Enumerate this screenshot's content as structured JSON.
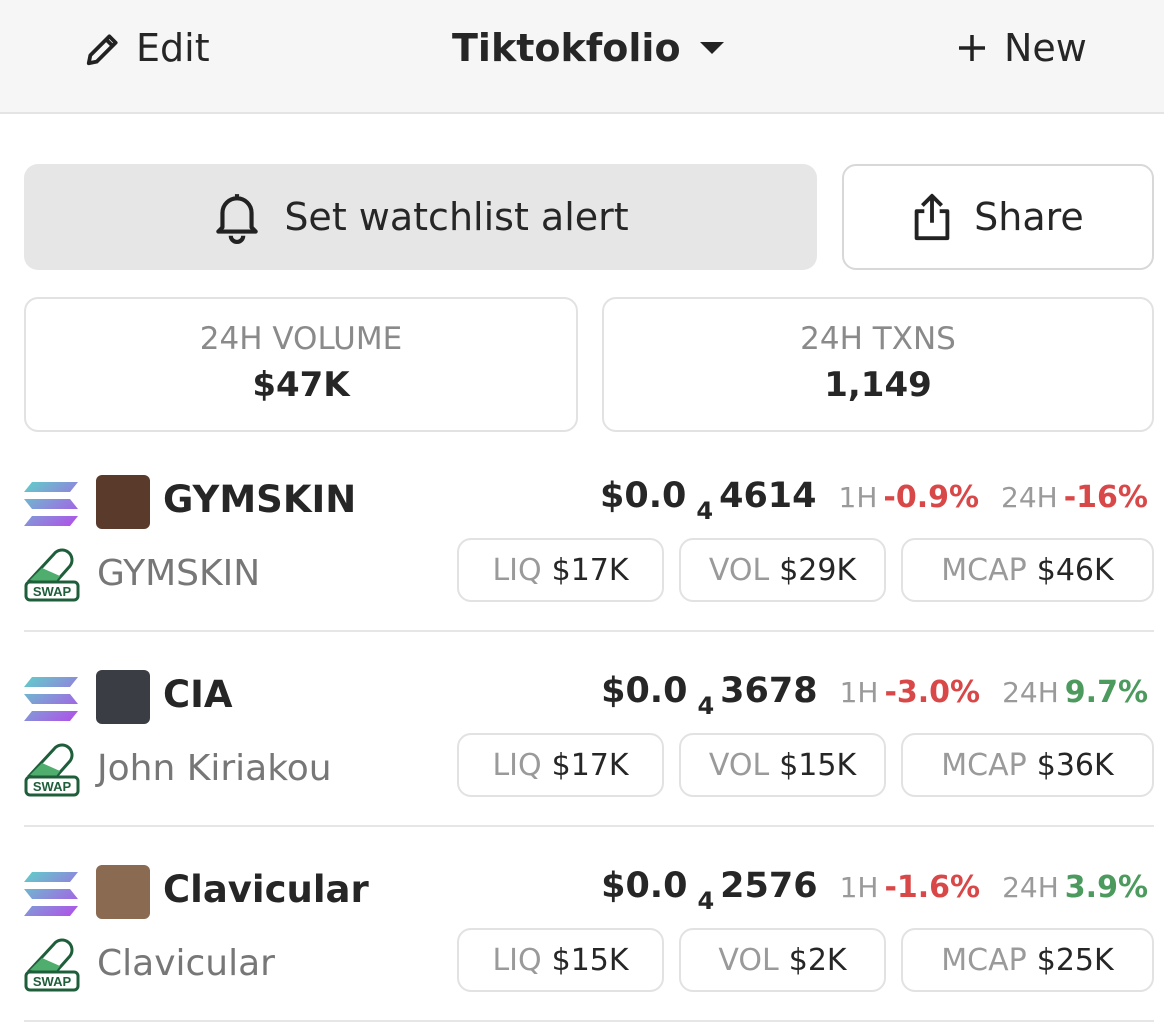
{
  "header": {
    "edit": "Edit",
    "title": "Tiktokfolio",
    "new": "New"
  },
  "actions": {
    "alert": "Set watchlist alert",
    "share": "Share"
  },
  "stats": [
    {
      "label": "24H VOLUME",
      "value": "$47K"
    },
    {
      "label": "24H TXNS",
      "value": "1,149"
    }
  ],
  "tokens": [
    {
      "symbol": "GYMSKIN",
      "name": "GYMSKIN",
      "badge": "SWAP",
      "price_prefix": "$0.0",
      "price_zeros": "4",
      "price_digits": "4614",
      "change_1h_label": "1H",
      "change_1h": "-0.9%",
      "change_24h_label": "24H",
      "change_24h": "-16%",
      "liq_label": "LIQ",
      "liq": "$17K",
      "vol_label": "VOL",
      "vol": "$29K",
      "mcap_label": "MCAP",
      "mcap": "$46K"
    },
    {
      "symbol": "CIA",
      "name": "John Kiriakou",
      "badge": "SWAP",
      "price_prefix": "$0.0",
      "price_zeros": "4",
      "price_digits": "3678",
      "change_1h_label": "1H",
      "change_1h": "-3.0%",
      "change_24h_label": "24H",
      "change_24h": "9.7%",
      "liq_label": "LIQ",
      "liq": "$17K",
      "vol_label": "VOL",
      "vol": "$15K",
      "mcap_label": "MCAP",
      "mcap": "$36K"
    },
    {
      "symbol": "Clavicular",
      "name": "Clavicular",
      "badge": "SWAP",
      "price_prefix": "$0.0",
      "price_zeros": "4",
      "price_digits": "2576",
      "change_1h_label": "1H",
      "change_1h": "-1.6%",
      "change_24h_label": "24H",
      "change_24h": "3.9%",
      "liq_label": "LIQ",
      "liq": "$15K",
      "vol_label": "VOL",
      "vol": "$2K",
      "mcap_label": "MCAP",
      "mcap": "$25K"
    }
  ]
}
